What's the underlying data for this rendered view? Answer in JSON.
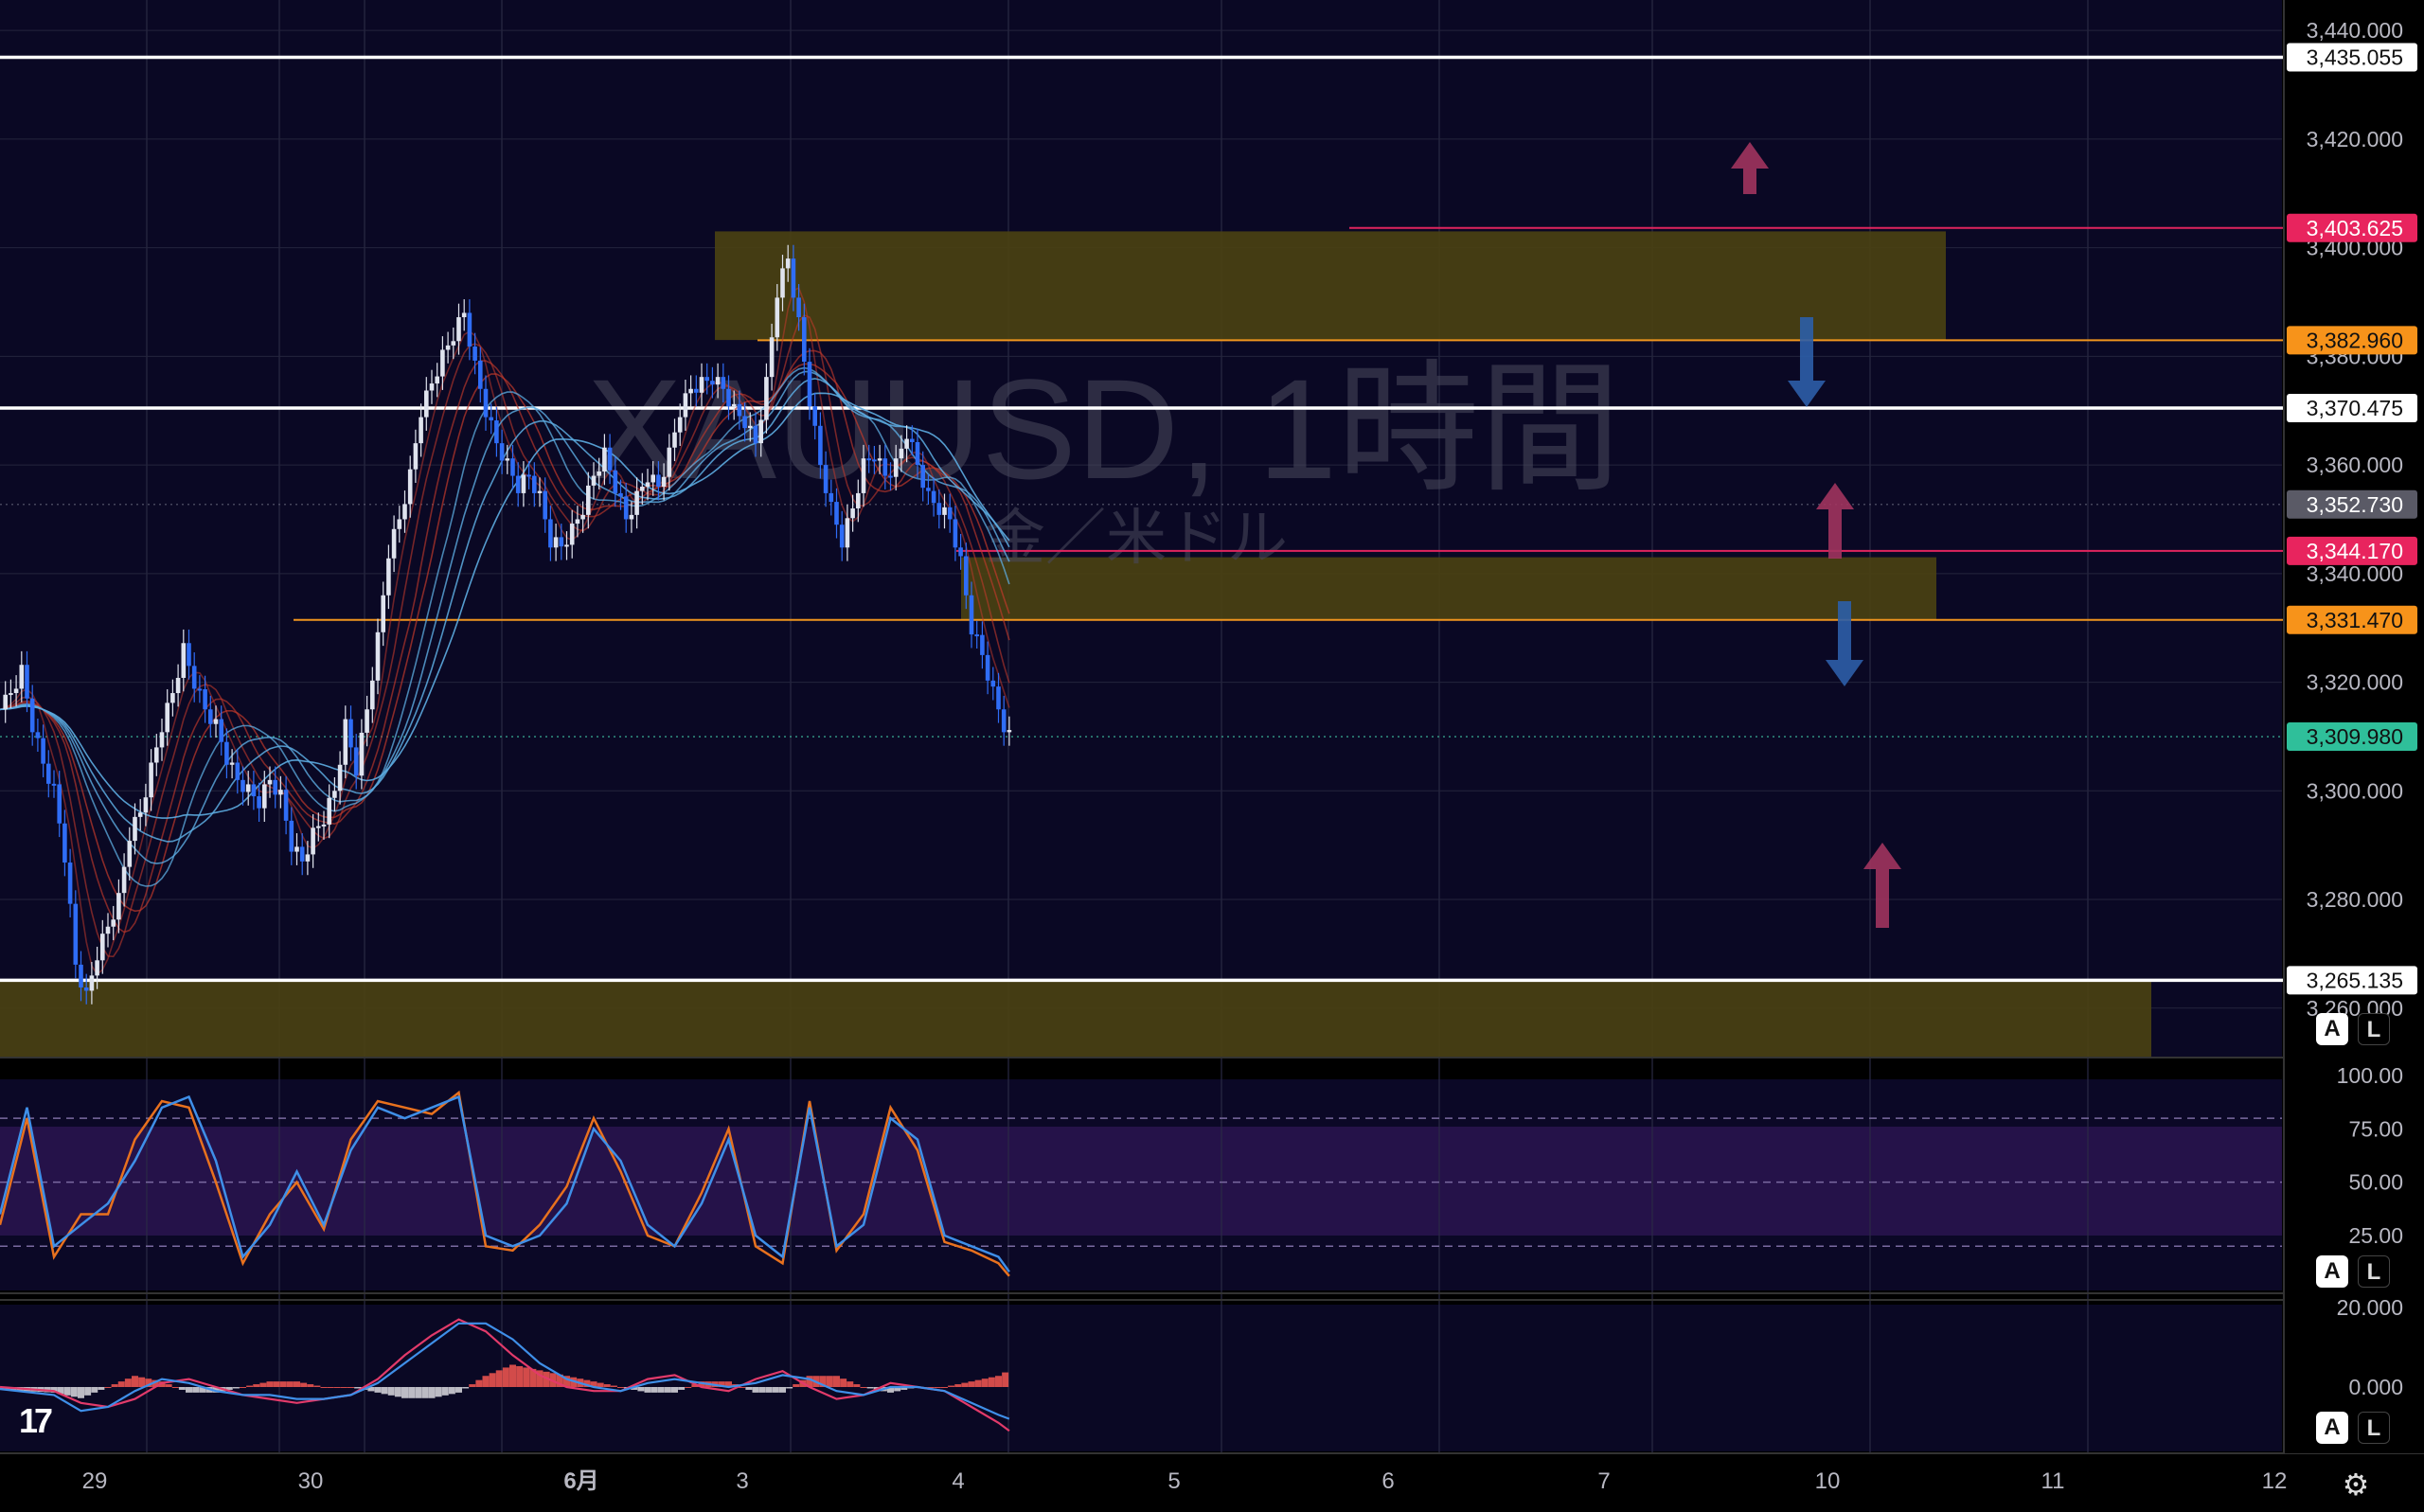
{
  "watermark": {
    "symbol": "XAUUSD, 1時間",
    "subtitle": "金／米ドル"
  },
  "colors": {
    "bg": "#000000",
    "pane_bg": "#0a0824",
    "zone": "#4a4112",
    "ema_fast": "#c0392b",
    "ema_slow": "#5dade2",
    "candle_up": "#dfe3ee",
    "candle_down": "#2f6df6",
    "stoch_k": "#3f8fe8",
    "stoch_d": "#e8711e",
    "macd_line": "#3f8fe8",
    "signal_line": "#e23a6a",
    "hist_pos": "#e8534f",
    "hist_neg": "#cfcfd6"
  },
  "price_axis": {
    "ticks": [
      "3,440.000",
      "3,420.000",
      "3,400.000",
      "3,380.000",
      "3,360.000",
      "3,340.000",
      "3,320.000",
      "3,300.000",
      "3,280.000",
      "3,260.000"
    ],
    "tick_values": [
      3440,
      3420,
      3400,
      3380,
      3360,
      3340,
      3320,
      3300,
      3280,
      3260
    ],
    "ylim": [
      3250.9,
      3445.6
    ]
  },
  "level_labels": [
    {
      "text": "3,435.055",
      "value": 3435.055,
      "style": "white"
    },
    {
      "text": "3,403.625",
      "value": 3403.625,
      "style": "pink"
    },
    {
      "text": "3,382.960",
      "value": 3382.96,
      "style": "orange"
    },
    {
      "text": "3,370.475",
      "value": 3370.475,
      "style": "white"
    },
    {
      "text": "3,352.730",
      "value": 3352.73,
      "style": "gray"
    },
    {
      "text": "3,344.170",
      "value": 3344.17,
      "style": "pink"
    },
    {
      "text": "3,331.470",
      "value": 3331.47,
      "style": "orange"
    },
    {
      "text": "3,309.980",
      "value": 3309.98,
      "style": "teal"
    },
    {
      "text": "3,265.135",
      "value": 3265.135,
      "style": "white"
    }
  ],
  "stoch_axis": {
    "ticks": [
      "100.00",
      "75.00",
      "50.00",
      "25.00"
    ],
    "tick_values": [
      100,
      75,
      50,
      25
    ]
  },
  "macd_axis": {
    "ticks": [
      "20.000",
      "0.000"
    ],
    "tick_values": [
      20,
      0
    ]
  },
  "time_axis": {
    "labels": [
      "29",
      "30",
      "6月",
      "3",
      "4",
      "5",
      "6",
      "7",
      "10",
      "11",
      "12"
    ]
  },
  "buttons": {
    "auto": "A",
    "log": "L"
  },
  "chart_data": {
    "type": "candlestick",
    "symbol": "XAUUSD",
    "timeframe": "1時間",
    "current_price": 3309.98,
    "horizontal_lines": [
      3435.055,
      3403.625,
      3382.96,
      3370.475,
      3344.17,
      3331.47,
      3265.135
    ],
    "zones": [
      {
        "from": 3383.0,
        "to": 3403.0
      },
      {
        "from": 3331.5,
        "to": 3343.0
      },
      {
        "from": 3250.9,
        "to": 3265.1
      }
    ],
    "arrows": [
      "up",
      "down",
      "up",
      "down",
      "up"
    ],
    "close_path": [
      [
        0,
        3315
      ],
      [
        0.4,
        3318
      ],
      [
        0.8,
        3322
      ],
      [
        1.2,
        3312
      ],
      [
        1.6,
        3305
      ],
      [
        2,
        3300
      ],
      [
        2.4,
        3288
      ],
      [
        2.8,
        3268
      ],
      [
        3.2,
        3262
      ],
      [
        3.6,
        3270
      ],
      [
        4,
        3275
      ],
      [
        4.4,
        3280
      ],
      [
        4.8,
        3292
      ],
      [
        5.2,
        3296
      ],
      [
        5.6,
        3304
      ],
      [
        6,
        3312
      ],
      [
        6.4,
        3318
      ],
      [
        6.8,
        3326
      ],
      [
        7.2,
        3320
      ],
      [
        7.6,
        3315
      ],
      [
        8,
        3312
      ],
      [
        8.4,
        3306
      ],
      [
        8.8,
        3302
      ],
      [
        9.2,
        3300
      ],
      [
        9.6,
        3298
      ],
      [
        10,
        3302
      ],
      [
        10.4,
        3299
      ],
      [
        10.8,
        3290
      ],
      [
        11.2,
        3287
      ],
      [
        11.6,
        3292
      ],
      [
        12,
        3295
      ],
      [
        12.4,
        3300
      ],
      [
        12.8,
        3312
      ],
      [
        13.2,
        3304
      ],
      [
        13.6,
        3315
      ],
      [
        14,
        3328
      ],
      [
        14.4,
        3344
      ],
      [
        14.8,
        3350
      ],
      [
        15.2,
        3358
      ],
      [
        15.6,
        3370
      ],
      [
        16,
        3375
      ],
      [
        16.4,
        3380
      ],
      [
        16.8,
        3384
      ],
      [
        17.2,
        3388
      ],
      [
        17.6,
        3378
      ],
      [
        18,
        3370
      ],
      [
        18.4,
        3364
      ],
      [
        18.8,
        3360
      ],
      [
        19.2,
        3356
      ],
      [
        19.6,
        3358
      ],
      [
        20,
        3354
      ],
      [
        20.4,
        3346
      ],
      [
        20.8,
        3345
      ],
      [
        21.2,
        3348
      ],
      [
        21.6,
        3352
      ],
      [
        22,
        3358
      ],
      [
        22.4,
        3362
      ],
      [
        22.8,
        3356
      ],
      [
        23.2,
        3350
      ],
      [
        23.6,
        3354
      ],
      [
        24,
        3358
      ],
      [
        24.4,
        3356
      ],
      [
        24.8,
        3362
      ],
      [
        25.2,
        3370
      ],
      [
        25.6,
        3374
      ],
      [
        26,
        3375
      ],
      [
        26.4,
        3376
      ],
      [
        26.8,
        3374
      ],
      [
        27.2,
        3370
      ],
      [
        27.6,
        3368
      ],
      [
        28,
        3364
      ],
      [
        28.4,
        3375
      ],
      [
        28.8,
        3392
      ],
      [
        29.2,
        3398
      ],
      [
        29.6,
        3386
      ],
      [
        30,
        3372
      ],
      [
        30.4,
        3360
      ],
      [
        30.8,
        3352
      ],
      [
        31.2,
        3346
      ],
      [
        31.6,
        3352
      ],
      [
        32,
        3360
      ],
      [
        32.4,
        3362
      ],
      [
        32.8,
        3358
      ],
      [
        33.2,
        3360
      ],
      [
        33.6,
        3366
      ],
      [
        34,
        3360
      ],
      [
        34.4,
        3354
      ],
      [
        34.8,
        3352
      ],
      [
        35.2,
        3350
      ],
      [
        35.6,
        3342
      ],
      [
        36,
        3330
      ],
      [
        36.4,
        3325
      ],
      [
        36.8,
        3318
      ],
      [
        37.2,
        3312
      ],
      [
        37.4,
        3310
      ]
    ],
    "stochastic_k": [
      [
        0,
        35
      ],
      [
        1,
        85
      ],
      [
        2,
        20
      ],
      [
        3,
        30
      ],
      [
        4,
        40
      ],
      [
        5,
        60
      ],
      [
        6,
        85
      ],
      [
        7,
        90
      ],
      [
        8,
        60
      ],
      [
        9,
        15
      ],
      [
        10,
        30
      ],
      [
        11,
        55
      ],
      [
        12,
        30
      ],
      [
        13,
        65
      ],
      [
        14,
        85
      ],
      [
        15,
        80
      ],
      [
        16,
        85
      ],
      [
        17,
        90
      ],
      [
        18,
        25
      ],
      [
        19,
        20
      ],
      [
        20,
        25
      ],
      [
        21,
        40
      ],
      [
        22,
        75
      ],
      [
        23,
        60
      ],
      [
        24,
        30
      ],
      [
        25,
        20
      ],
      [
        26,
        40
      ],
      [
        27,
        70
      ],
      [
        28,
        25
      ],
      [
        29,
        15
      ],
      [
        30,
        85
      ],
      [
        31,
        20
      ],
      [
        32,
        30
      ],
      [
        33,
        80
      ],
      [
        34,
        70
      ],
      [
        35,
        25
      ],
      [
        36,
        20
      ],
      [
        37,
        15
      ],
      [
        37.4,
        8
      ]
    ],
    "stochastic_d": [
      [
        0,
        30
      ],
      [
        1,
        80
      ],
      [
        2,
        15
      ],
      [
        3,
        35
      ],
      [
        4,
        35
      ],
      [
        5,
        70
      ],
      [
        6,
        88
      ],
      [
        7,
        85
      ],
      [
        8,
        50
      ],
      [
        9,
        12
      ],
      [
        10,
        35
      ],
      [
        11,
        50
      ],
      [
        12,
        28
      ],
      [
        13,
        70
      ],
      [
        14,
        88
      ],
      [
        15,
        85
      ],
      [
        16,
        82
      ],
      [
        17,
        92
      ],
      [
        18,
        20
      ],
      [
        19,
        18
      ],
      [
        20,
        30
      ],
      [
        21,
        48
      ],
      [
        22,
        80
      ],
      [
        23,
        55
      ],
      [
        24,
        25
      ],
      [
        25,
        20
      ],
      [
        26,
        45
      ],
      [
        27,
        75
      ],
      [
        28,
        20
      ],
      [
        29,
        12
      ],
      [
        30,
        88
      ],
      [
        31,
        18
      ],
      [
        32,
        35
      ],
      [
        33,
        85
      ],
      [
        34,
        65
      ],
      [
        35,
        22
      ],
      [
        36,
        18
      ],
      [
        37,
        12
      ],
      [
        37.4,
        6
      ]
    ],
    "macd": [
      [
        0,
        -0.5
      ],
      [
        2,
        -2
      ],
      [
        3,
        -6
      ],
      [
        4,
        -5
      ],
      [
        5,
        -1
      ],
      [
        6,
        2
      ],
      [
        7,
        1
      ],
      [
        8,
        -1
      ],
      [
        9,
        -2
      ],
      [
        10,
        -2
      ],
      [
        11,
        -3
      ],
      [
        12,
        -3
      ],
      [
        13,
        -2
      ],
      [
        14,
        1
      ],
      [
        15,
        6
      ],
      [
        16,
        11
      ],
      [
        17,
        16
      ],
      [
        18,
        16
      ],
      [
        19,
        12
      ],
      [
        20,
        6
      ],
      [
        21,
        2
      ],
      [
        22,
        0
      ],
      [
        23,
        -1
      ],
      [
        24,
        1
      ],
      [
        25,
        2
      ],
      [
        26,
        1
      ],
      [
        27,
        0
      ],
      [
        28,
        1
      ],
      [
        29,
        3
      ],
      [
        30,
        2
      ],
      [
        31,
        -1
      ],
      [
        32,
        -2
      ],
      [
        33,
        0
      ],
      [
        34,
        0
      ],
      [
        35,
        -1
      ],
      [
        36,
        -4
      ],
      [
        37,
        -7
      ],
      [
        37.4,
        -8
      ]
    ],
    "signal": [
      [
        0,
        0
      ],
      [
        2,
        -1
      ],
      [
        3,
        -4
      ],
      [
        4,
        -5
      ],
      [
        5,
        -3
      ],
      [
        6,
        1
      ],
      [
        7,
        2
      ],
      [
        8,
        0
      ],
      [
        9,
        -2
      ],
      [
        10,
        -3
      ],
      [
        11,
        -4
      ],
      [
        12,
        -3
      ],
      [
        13,
        -2
      ],
      [
        14,
        2
      ],
      [
        15,
        8
      ],
      [
        16,
        13
      ],
      [
        17,
        17
      ],
      [
        18,
        14
      ],
      [
        19,
        8
      ],
      [
        20,
        3
      ],
      [
        21,
        0
      ],
      [
        22,
        -1
      ],
      [
        23,
        -1
      ],
      [
        24,
        2
      ],
      [
        25,
        3
      ],
      [
        26,
        0
      ],
      [
        27,
        -1
      ],
      [
        28,
        2
      ],
      [
        29,
        4
      ],
      [
        30,
        0
      ],
      [
        31,
        -3
      ],
      [
        32,
        -2
      ],
      [
        33,
        1
      ],
      [
        34,
        0
      ],
      [
        35,
        -1
      ],
      [
        36,
        -5
      ],
      [
        37,
        -9
      ],
      [
        37.4,
        -11
      ]
    ]
  }
}
